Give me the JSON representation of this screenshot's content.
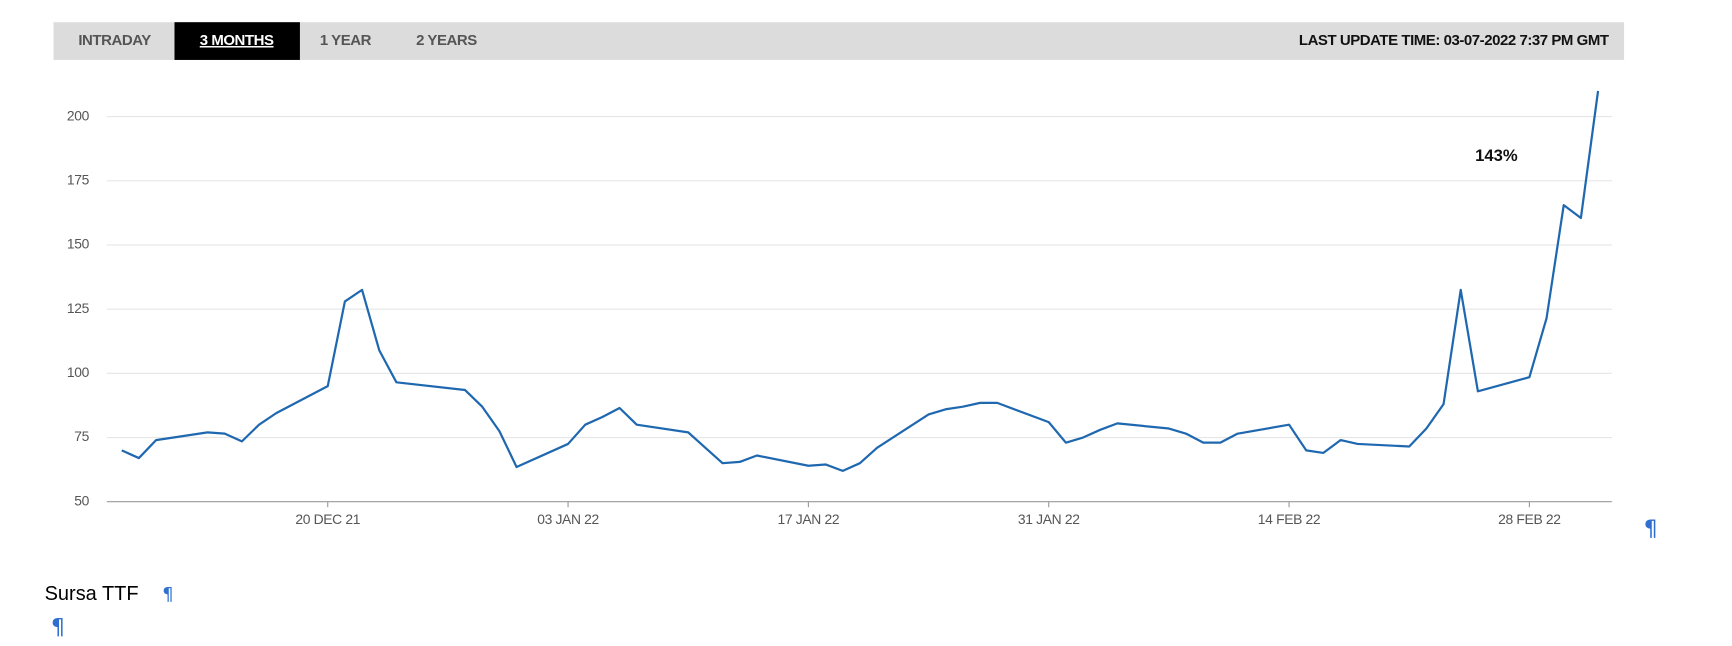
{
  "tabs": [
    "INTRADAY",
    "3 MONTHS",
    "1 YEAR",
    "2 YEARS"
  ],
  "last_update": "LAST UPDATE TIME: 03-07-2022 7:37 PM GMT",
  "chart_data": {
    "type": "line",
    "color": "#1f68b0",
    "grid": true,
    "annotation": "143%",
    "x": [
      "08 DEC 21",
      "09 DEC 21",
      "10 DEC 21",
      "13 DEC 21",
      "14 DEC 21",
      "15 DEC 21",
      "16 DEC 21",
      "17 DEC 21",
      "20 DEC 21",
      "21 DEC 21",
      "22 DEC 21",
      "23 DEC 21",
      "24 DEC 21",
      "28 DEC 21",
      "29 DEC 21",
      "30 DEC 21",
      "31 DEC 21",
      "03 JAN 22",
      "04 JAN 22",
      "05 JAN 22",
      "06 JAN 22",
      "07 JAN 22",
      "10 JAN 22",
      "11 JAN 22",
      "12 JAN 22",
      "13 JAN 22",
      "14 JAN 22",
      "17 JAN 22",
      "18 JAN 22",
      "19 JAN 22",
      "20 JAN 22",
      "21 JAN 22",
      "24 JAN 22",
      "25 JAN 22",
      "26 JAN 22",
      "27 JAN 22",
      "28 JAN 22",
      "31 JAN 22",
      "01 FEB 22",
      "02 FEB 22",
      "03 FEB 22",
      "04 FEB 22",
      "07 FEB 22",
      "08 FEB 22",
      "09 FEB 22",
      "10 FEB 22",
      "11 FEB 22",
      "14 FEB 22",
      "15 FEB 22",
      "16 FEB 22",
      "17 FEB 22",
      "18 FEB 22",
      "21 FEB 22",
      "22 FEB 22",
      "23 FEB 22",
      "24 FEB 22",
      "25 FEB 22",
      "28 FEB 22",
      "01 MAR 22",
      "02 MAR 22",
      "03 MAR 22",
      "04 MAR 22"
    ],
    "values": [
      70,
      67,
      74,
      77,
      76.5,
      73.5,
      80,
      84.5,
      95,
      128,
      132.5,
      109,
      96.5,
      93.5,
      87,
      77.5,
      63.5,
      72.5,
      80,
      83,
      86.5,
      80,
      77,
      71,
      65,
      65.5,
      68,
      64,
      64.5,
      62,
      65,
      71,
      84,
      86,
      87,
      88.5,
      88.5,
      81,
      73,
      75,
      78,
      80.5,
      78.5,
      76.5,
      73,
      73,
      76.5,
      80,
      70,
      69,
      74,
      72.5,
      71.5,
      78.5,
      88,
      132.5,
      93,
      98.5,
      121.5,
      165.5,
      160.5,
      210
    ],
    "xlim": [
      "07 DEC 21",
      "05 MAR 22"
    ],
    "xticks": [
      "20 DEC 21",
      "03 JAN 22",
      "17 JAN 22",
      "31 JAN 22",
      "14 FEB 22",
      "28 FEB 22"
    ],
    "ylim": [
      50,
      211
    ],
    "yticks": [
      50,
      75,
      100,
      125,
      150,
      175,
      200
    ]
  },
  "caption": "Sursa TTF",
  "formatting_mark": "¶"
}
